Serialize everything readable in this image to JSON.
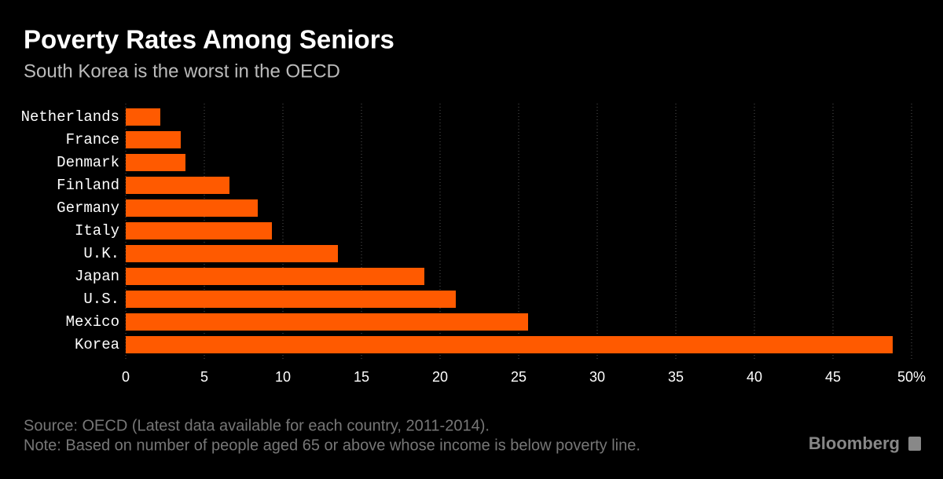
{
  "chart_data": {
    "type": "barh",
    "title": "Poverty Rates Among Seniors",
    "subtitle": "South Korea is the worst in the OECD",
    "categories": [
      "Netherlands",
      "France",
      "Denmark",
      "Finland",
      "Germany",
      "Italy",
      "U.K.",
      "Japan",
      "U.S.",
      "Mexico",
      "Korea"
    ],
    "values": [
      2.2,
      3.5,
      3.8,
      6.6,
      8.4,
      9.3,
      13.5,
      19.0,
      21.0,
      25.6,
      48.8
    ],
    "color": "#ff5a00",
    "xlim": [
      0,
      50
    ],
    "xticks": [
      0,
      5,
      10,
      15,
      20,
      25,
      30,
      35,
      40,
      45,
      {
        "value": 50,
        "label": "50%"
      }
    ],
    "grid": true,
    "source": "Source: OECD (Latest data available for each country, 2011-2014).",
    "note": "Note: Based on number of people aged 65 or above whose income is below poverty line.",
    "brand": "Bloomberg"
  }
}
